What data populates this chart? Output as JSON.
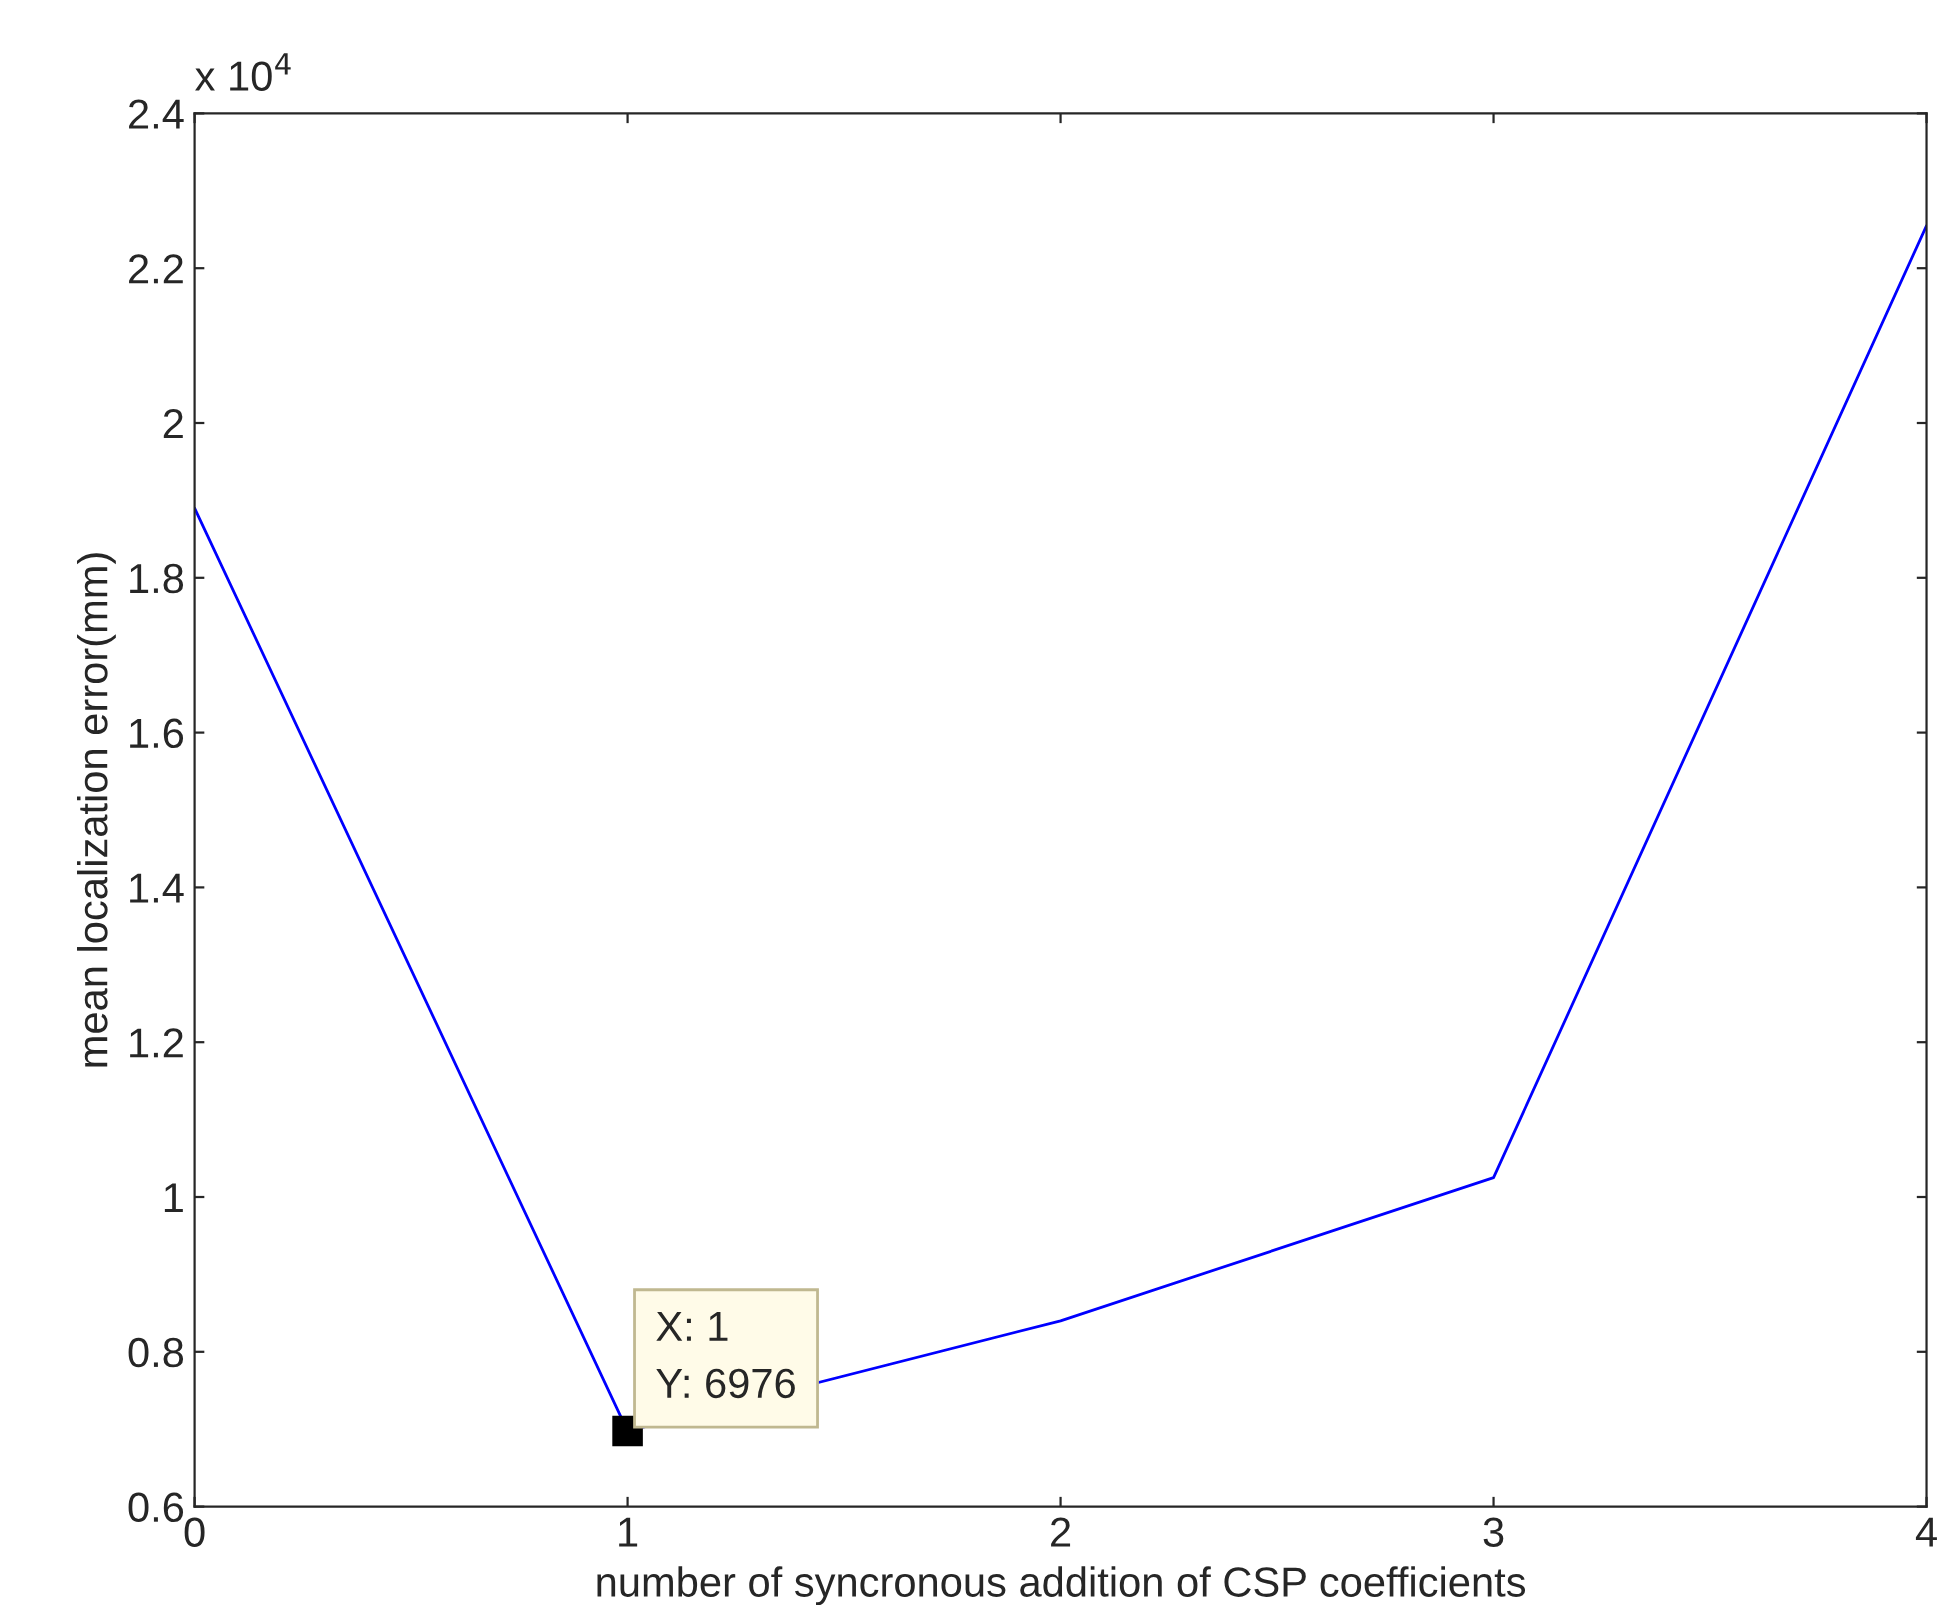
{
  "chart_data": {
    "type": "line",
    "xlabel": "number of syncronous addition of CSP coefficients",
    "ylabel": "mean localization error(mm)",
    "x": [
      0,
      1,
      2,
      3,
      4
    ],
    "series": [
      {
        "color": "#0000ff",
        "values": [
          1.89,
          0.6976,
          0.84,
          1.025,
          2.255
        ]
      }
    ],
    "xlim": [
      0,
      4
    ],
    "xticks": [
      0,
      1,
      2,
      3,
      4
    ],
    "ylim": [
      0.6,
      2.4
    ],
    "yticks": [
      0.6,
      0.8,
      1,
      1.2,
      1.4,
      1.6,
      1.8,
      2,
      2.2,
      2.4
    ],
    "annotations": [
      "x 10$^{4}$",
      {
        "text": "X: 1\nY: 6976",
        "x": 1,
        "y": 0.6976
      }
    ],
    "grid": false,
    "marker": "none",
    "line_style": "solid"
  }
}
